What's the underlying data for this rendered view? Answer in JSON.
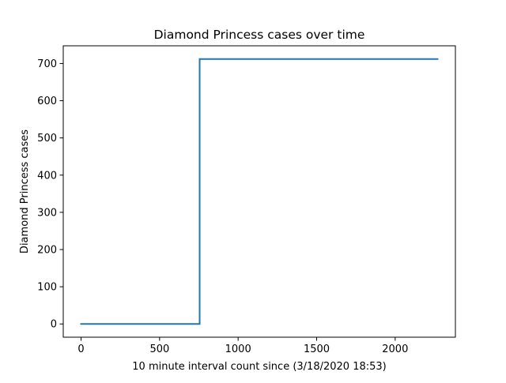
{
  "chart_data": {
    "type": "line",
    "title": "Diamond Princess cases over time",
    "xlabel": "10 minute interval count since (3/18/2020 18:53)",
    "ylabel": "Diamond Princess cases",
    "xlim": [
      -113.5,
      2383.5
    ],
    "ylim": [
      -35.6,
      747.6
    ],
    "xticks": [
      0,
      500,
      1000,
      1500,
      2000
    ],
    "xtick_labels": [
      "0",
      "500",
      "1000",
      "1500",
      "2000"
    ],
    "yticks": [
      0,
      100,
      200,
      300,
      400,
      500,
      600,
      700
    ],
    "ytick_labels": [
      "0",
      "100",
      "200",
      "300",
      "400",
      "500",
      "600",
      "700"
    ],
    "grid": false,
    "series": [
      {
        "color": "#1f77b4",
        "x": [
          0,
          755,
          755,
          2270
        ],
        "y": [
          0,
          0,
          712,
          712
        ]
      }
    ]
  }
}
